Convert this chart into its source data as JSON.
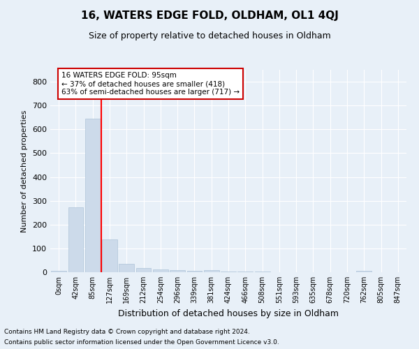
{
  "title": "16, WATERS EDGE FOLD, OLDHAM, OL1 4QJ",
  "subtitle": "Size of property relative to detached houses in Oldham",
  "xlabel": "Distribution of detached houses by size in Oldham",
  "ylabel": "Number of detached properties",
  "footnote1": "Contains HM Land Registry data © Crown copyright and database right 2024.",
  "footnote2": "Contains public sector information licensed under the Open Government Licence v3.0.",
  "bar_values": [
    7,
    272,
    645,
    137,
    35,
    17,
    11,
    8,
    5,
    9,
    4,
    4,
    3,
    1,
    0,
    0,
    0,
    0,
    7,
    0,
    0
  ],
  "bin_labels": [
    "0sqm",
    "42sqm",
    "85sqm",
    "127sqm",
    "169sqm",
    "212sqm",
    "254sqm",
    "296sqm",
    "339sqm",
    "381sqm",
    "424sqm",
    "466sqm",
    "508sqm",
    "551sqm",
    "593sqm",
    "635sqm",
    "678sqm",
    "720sqm",
    "762sqm",
    "805sqm",
    "847sqm"
  ],
  "bar_color": "#ccdaea",
  "bar_edgecolor": "#aec4d8",
  "bg_color": "#e8f0f8",
  "grid_color": "#ffffff",
  "red_line_x": 2.5,
  "annotation_text": "16 WATERS EDGE FOLD: 95sqm\n← 37% of detached houses are smaller (418)\n63% of semi-detached houses are larger (717) →",
  "annotation_box_color": "#ffffff",
  "annotation_box_edgecolor": "#cc0000",
  "ylim": [
    0,
    850
  ],
  "yticks": [
    0,
    100,
    200,
    300,
    400,
    500,
    600,
    700,
    800
  ],
  "title_fontsize": 11,
  "subtitle_fontsize": 9,
  "xlabel_fontsize": 9,
  "ylabel_fontsize": 8,
  "tick_fontsize": 8,
  "xtick_fontsize": 7,
  "footnote_fontsize": 6.5,
  "annotation_fontsize": 7.5
}
